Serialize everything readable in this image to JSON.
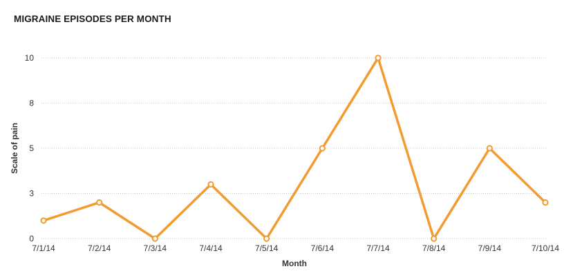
{
  "chart_data": {
    "type": "line",
    "title": "MIGRAINE EPISODES PER MONTH",
    "xlabel": "Month",
    "ylabel": "Scale of pain",
    "categories": [
      "7/1/14",
      "7/2/14",
      "7/3/14",
      "7/4/14",
      "7/5/14",
      "7/6/14",
      "7/7/14",
      "7/8/14",
      "7/9/14",
      "7/10/14"
    ],
    "series": [
      {
        "values": [
          1,
          2,
          0,
          3,
          0,
          5,
          10,
          0,
          5,
          2
        ],
        "color": "#f29b30"
      }
    ],
    "y_ticks": [
      {
        "value": 0,
        "label": "0"
      },
      {
        "value": 2.5,
        "label": "3"
      },
      {
        "value": 5,
        "label": "5"
      },
      {
        "value": 7.5,
        "label": "8"
      },
      {
        "value": 10,
        "label": "10"
      }
    ],
    "ylim": [
      0,
      10
    ],
    "grid": true,
    "legend": "none"
  }
}
